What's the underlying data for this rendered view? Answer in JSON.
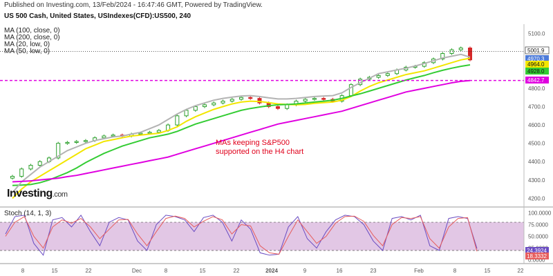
{
  "header": {
    "published": "Published on Investing.com, 13/Feb/2024 - 16:47:46 GMT, Powered by TradingView.",
    "symbol": "US 500 Cash, United States, USIndexes(CFD):US500, 240"
  },
  "legend": {
    "ma100": "MA (100, close, 0)",
    "ma200": "MA (200, close, 0)",
    "ma20": "MA (20, low, 0)",
    "ma50": "MA (50, low, 0)"
  },
  "stoch_label": "Stoch (14, 1, 3)",
  "logo": {
    "word": "Investing",
    "suffix": ".com"
  },
  "annotation": {
    "line1": "MAs keeping S&P500",
    "line2": "supported on the H4 chart"
  },
  "colors": {
    "up": "#2ca02c",
    "down": "#d62728",
    "ma20": "#f2e600",
    "ma50": "#33cc33",
    "ma100": "#b3b3b3",
    "ma200": "#e000e0",
    "stochK": "#6a4cc2",
    "stochD": "#e65c5c",
    "stochBand": "#d8b4dc",
    "price_line": "#222222",
    "support_line": "#e000e0",
    "grid_text": "#555555"
  },
  "chart_data": [
    {
      "type": "line",
      "title": "US 500 Cash, United States, USIndexes(CFD):US500, 240",
      "x_labels": [
        "8",
        "15",
        "22",
        "Dec",
        "8",
        "15",
        "22",
        "2024",
        "9",
        "16",
        "23",
        "Feb",
        "8",
        "15",
        "22"
      ],
      "y_ticks": [
        4200,
        4300,
        4400,
        4500,
        4600,
        4700,
        4800,
        4900,
        5000,
        5100
      ],
      "ylim": [
        4160,
        5150
      ],
      "series": [
        {
          "name": "US500",
          "values": [
            4320,
            4360,
            4380,
            4400,
            4420,
            4500,
            4505,
            4510,
            4515,
            4530,
            4540,
            4545,
            4540,
            4550,
            4555,
            4560,
            4570,
            4600,
            4650,
            4680,
            4700,
            4710,
            4720,
            4730,
            4740,
            4750,
            4745,
            4720,
            4700,
            4690,
            4710,
            4730,
            4740,
            4745,
            4740,
            4730,
            4760,
            4820,
            4850,
            4860,
            4870,
            4880,
            4900,
            4915,
            4920,
            4940,
            4960,
            4990,
            5010,
            5020,
            4955
          ]
        },
        {
          "name": "MA (20, low, 0)",
          "values": [
            4200,
            4250,
            4290,
            4320,
            4350,
            4380,
            4410,
            4440,
            4470,
            4490,
            4510,
            4520,
            4530,
            4540,
            4545,
            4550,
            4555,
            4570,
            4590,
            4620,
            4645,
            4665,
            4685,
            4700,
            4715,
            4725,
            4730,
            4728,
            4722,
            4715,
            4712,
            4710,
            4712,
            4718,
            4722,
            4725,
            4735,
            4755,
            4785,
            4810,
            4830,
            4845,
            4860,
            4875,
            4885,
            4895,
            4910,
            4925,
            4940,
            4955,
            4964
          ]
        },
        {
          "name": "MA (50, low, 0)",
          "values": [
            4270,
            4272,
            4275,
            4285,
            4300,
            4320,
            4340,
            4365,
            4395,
            4420,
            4445,
            4465,
            4485,
            4500,
            4515,
            4530,
            4540,
            4550,
            4565,
            4585,
            4605,
            4620,
            4635,
            4650,
            4665,
            4680,
            4690,
            4698,
            4705,
            4710,
            4712,
            4715,
            4720,
            4725,
            4730,
            4735,
            4745,
            4758,
            4770,
            4785,
            4800,
            4815,
            4830,
            4845,
            4858,
            4870,
            4885,
            4898,
            4910,
            4920,
            4928
          ]
        },
        {
          "name": "MA (100, close, 0)",
          "values": [
            4230,
            4290,
            4330,
            4370,
            4400,
            4430,
            4460,
            4480,
            4500,
            4515,
            4525,
            4535,
            4540,
            4550,
            4560,
            4580,
            4600,
            4630,
            4660,
            4685,
            4705,
            4720,
            4735,
            4745,
            4752,
            4758,
            4760,
            4755,
            4748,
            4742,
            4742,
            4745,
            4750,
            4755,
            4758,
            4760,
            4775,
            4805,
            4830,
            4855,
            4880,
            4890,
            4900,
            4910,
            4922,
            4935,
            4950,
            4965,
            4975,
            4985,
            4970
          ]
        },
        {
          "name": "MA (200, close, 0)",
          "values": [
            4290,
            4292,
            4295,
            4300,
            4305,
            4310,
            4318,
            4325,
            4335,
            4345,
            4355,
            4365,
            4375,
            4385,
            4395,
            4405,
            4415,
            4425,
            4440,
            4455,
            4470,
            4485,
            4500,
            4515,
            4530,
            4545,
            4560,
            4575,
            4590,
            4605,
            4615,
            4625,
            4635,
            4645,
            4655,
            4665,
            4675,
            4690,
            4705,
            4720,
            4735,
            4750,
            4765,
            4780,
            4790,
            4800,
            4810,
            4820,
            4830,
            4838,
            4842
          ]
        }
      ],
      "price_labels": [
        {
          "text": "5001.9",
          "value": 5001.9
        },
        {
          "text": "4970.3",
          "value": 4970.3
        },
        {
          "text": "4964.0",
          "value": 4964.0
        },
        {
          "text": "4928.0",
          "value": 4928.0
        },
        {
          "text": "4842.7",
          "value": 4842.7
        }
      ],
      "hlines": [
        4842.7
      ]
    },
    {
      "type": "line",
      "title": "Stoch (14, 1, 3)",
      "y_ticks": [
        0,
        25,
        50,
        75,
        100
      ],
      "y_tick_labels": [
        "0.0000",
        "25.0000",
        "50.0000",
        "75.0000",
        "100.0000"
      ],
      "ylim": [
        -5,
        108
      ],
      "band": [
        20,
        80
      ],
      "series": [
        {
          "name": "%K",
          "values": [
            55,
            92,
            95,
            35,
            10,
            85,
            90,
            70,
            95,
            60,
            30,
            80,
            90,
            85,
            40,
            20,
            75,
            95,
            92,
            85,
            60,
            90,
            95,
            80,
            40,
            85,
            65,
            15,
            10,
            12,
            70,
            92,
            45,
            25,
            60,
            85,
            95,
            92,
            75,
            40,
            20,
            88,
            92,
            85,
            95,
            30,
            20,
            88,
            92,
            88,
            24
          ]
        },
        {
          "name": "%D",
          "values": [
            50,
            80,
            92,
            50,
            25,
            70,
            85,
            78,
            88,
            70,
            45,
            65,
            85,
            86,
            55,
            30,
            60,
            88,
            93,
            88,
            70,
            82,
            92,
            85,
            55,
            75,
            72,
            30,
            15,
            12,
            50,
            85,
            60,
            35,
            50,
            78,
            92,
            93,
            82,
            52,
            30,
            75,
            90,
            88,
            92,
            45,
            25,
            70,
            88,
            90,
            18
          ]
        }
      ],
      "price_labels": [
        {
          "text": "24.3924",
          "value": 24.3924
        },
        {
          "text": "18.3332",
          "value": 18.3332
        }
      ]
    }
  ]
}
